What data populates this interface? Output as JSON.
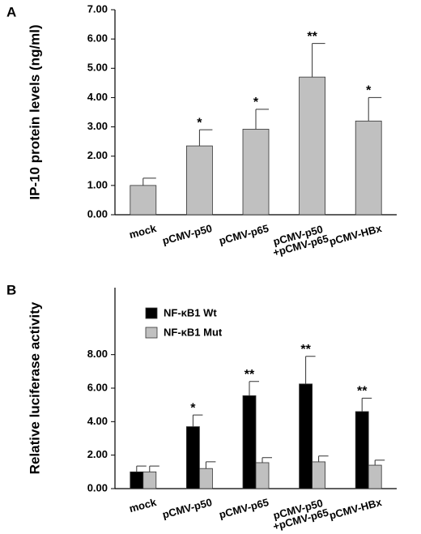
{
  "chart_data": [
    {
      "type": "bar",
      "panel_label": "A",
      "ylabel": "IP-10 protein levels (ng/ml)",
      "categories": [
        "mock",
        "pCMV-p50",
        "pCMV-p65",
        "pCMV-p50\n+pCMV-p65",
        "pCMV-HBx"
      ],
      "values": [
        1.0,
        2.35,
        2.92,
        4.7,
        3.2
      ],
      "errors": [
        0.25,
        0.55,
        0.68,
        1.15,
        0.8
      ],
      "significance": [
        null,
        "*",
        "*",
        "**",
        "*"
      ],
      "color": "#c0c0c0",
      "ylim": [
        0,
        7
      ],
      "yticks": [
        {
          "value": 0,
          "label": "0.00"
        },
        {
          "value": 1,
          "label": "1.00"
        },
        {
          "value": 2,
          "label": "2.00"
        },
        {
          "value": 3,
          "label": "3.00"
        },
        {
          "value": 4,
          "label": "4.00"
        },
        {
          "value": 5,
          "label": "5.00"
        },
        {
          "value": 6,
          "label": "6.00"
        },
        {
          "value": 7,
          "label": "7.00"
        }
      ]
    },
    {
      "type": "bar",
      "panel_label": "B",
      "ylabel": "Relative luciferase activity",
      "categories": [
        "mock",
        "pCMV-p50",
        "pCMV-p65",
        "pCMV-p50\n+pCMV-p65",
        "pCMV-HBx"
      ],
      "series": [
        {
          "name": "NF-κB1 Wt",
          "color": "#000000",
          "values": [
            1.0,
            3.7,
            5.55,
            6.25,
            4.6
          ],
          "errors": [
            0.35,
            0.7,
            0.85,
            1.65,
            0.8
          ],
          "significance": [
            null,
            "*",
            "**",
            "**",
            "**"
          ]
        },
        {
          "name": "NF-κB1 Mut",
          "color": "#c0c0c0",
          "values": [
            1.0,
            1.2,
            1.55,
            1.6,
            1.4
          ],
          "errors": [
            0.35,
            0.4,
            0.3,
            0.35,
            0.3
          ]
        }
      ],
      "ylim": [
        0,
        12
      ],
      "yticks": [
        {
          "value": 0,
          "label": "0.00"
        },
        {
          "value": 2,
          "label": "2.00"
        },
        {
          "value": 4,
          "label": "4.00"
        },
        {
          "value": 6,
          "label": "6.00"
        },
        {
          "value": 8,
          "label": "8.00"
        }
      ],
      "legend": "top-left"
    }
  ]
}
